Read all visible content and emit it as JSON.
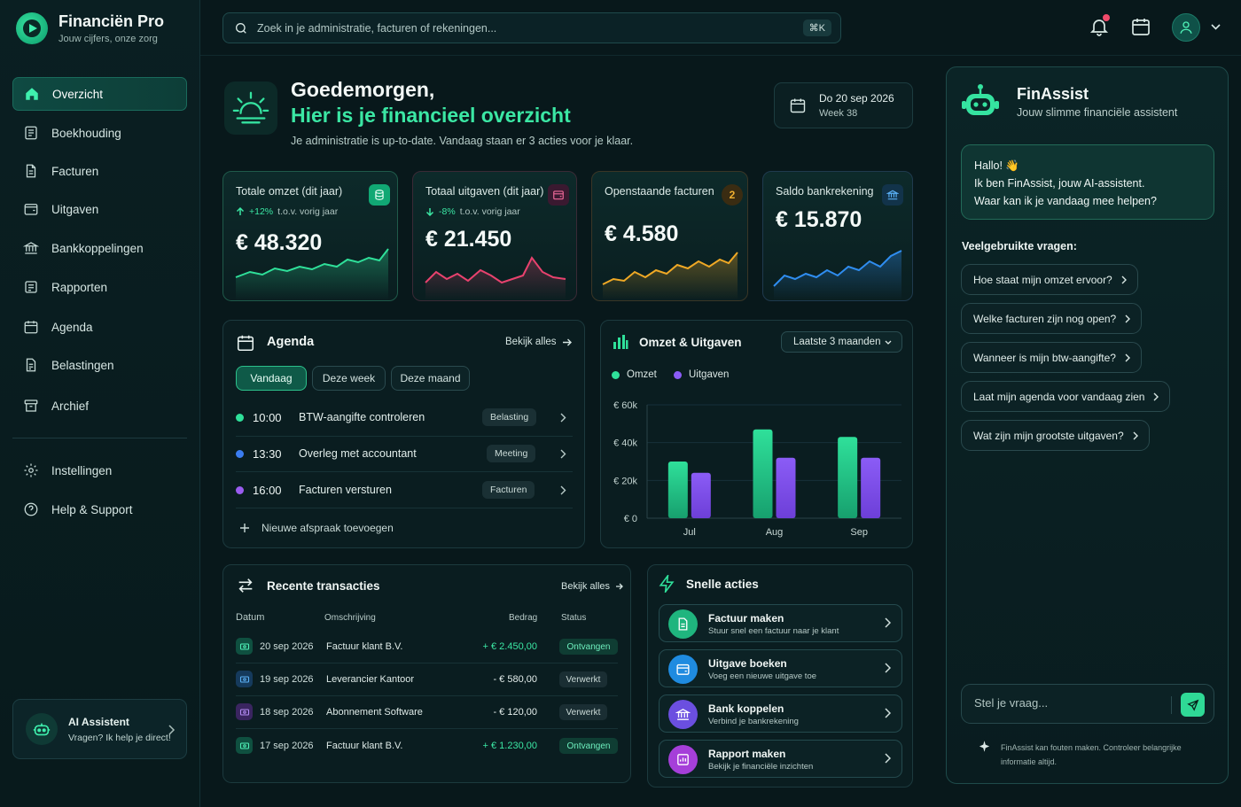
{
  "brand": {
    "name": "Financiën Pro",
    "tagline": "Jouw cijfers, onze zorg"
  },
  "nav": {
    "items": [
      {
        "label": "Overzicht",
        "icon": "home-icon",
        "active": true
      },
      {
        "label": "Boekhouding",
        "icon": "ledger-icon"
      },
      {
        "label": "Facturen",
        "icon": "invoice-icon"
      },
      {
        "label": "Uitgaven",
        "icon": "wallet-icon"
      },
      {
        "label": "Bankkoppelingen",
        "icon": "bank-icon"
      },
      {
        "label": "Rapporten",
        "icon": "report-icon"
      },
      {
        "label": "Agenda",
        "icon": "calendar-icon"
      },
      {
        "label": "Belastingen",
        "icon": "tax-document-icon"
      },
      {
        "label": "Archief",
        "icon": "archive-icon"
      }
    ],
    "bottom_items": [
      {
        "label": "Instellingen",
        "icon": "gear-icon"
      },
      {
        "label": "Help & Support",
        "icon": "help-icon"
      }
    ]
  },
  "ai_card": {
    "title": "AI Assistent",
    "subtitle": "Vragen? Ik help je direct!"
  },
  "search": {
    "placeholder": "Zoek in je administratie, facturen of rekeningen...",
    "shortcut": "⌘K"
  },
  "greeting": {
    "line1": "Goedemorgen,",
    "line2": "Hier is je financieel overzicht",
    "line3": "Je administratie is up-to-date. Vandaag staan er 3 acties voor je klaar."
  },
  "date": {
    "day": "Do 20 sep 2026",
    "week": "Week 38"
  },
  "kpis": [
    {
      "title": "Totale omzet (dit jaar)",
      "delta": "+12%",
      "delta_note": "t.o.v. vorig jaar",
      "value": "€ 48.320",
      "color": "#2fe09a"
    },
    {
      "title": "Totaal uitgaven (dit jaar)",
      "delta": "-8%",
      "delta_note": "t.o.v. vorig jaar",
      "value": "€ 21.450",
      "color": "#e8426e"
    },
    {
      "title": "Openstaande facturen",
      "badge": "2",
      "value": "€ 4.580",
      "color": "#f0a925"
    },
    {
      "title": "Saldo bankrekening",
      "value": "€ 15.870",
      "color": "#2f8df0"
    }
  ],
  "agenda": {
    "title": "Agenda",
    "view_all": "Bekijk alles",
    "tabs": [
      "Vandaag",
      "Deze week",
      "Deze maand"
    ],
    "items": [
      {
        "time": "10:00",
        "text": "BTW-aangifte controleren",
        "tag": "Belasting",
        "color": "#2fe09a"
      },
      {
        "time": "13:30",
        "text": "Overleg met accountant",
        "tag": "Meeting",
        "color": "#3b7df0"
      },
      {
        "time": "16:00",
        "text": "Facturen versturen",
        "tag": "Facturen",
        "color": "#9a5cf0"
      }
    ],
    "add_label": "Nieuwe afspraak toevoegen"
  },
  "chart_panel": {
    "title": "Omzet & Uitgaven",
    "period": "Laatste 3 maanden"
  },
  "chart_data": {
    "type": "bar",
    "categories": [
      "Jul",
      "Aug",
      "Sep"
    ],
    "series": [
      {
        "name": "Omzet",
        "values": [
          30000,
          47000,
          43000
        ],
        "color": "#2fe09a"
      },
      {
        "name": "Uitgaven",
        "values": [
          24000,
          32000,
          32000
        ],
        "color": "#8b5cf6"
      }
    ],
    "yticks": [
      "€ 0",
      "€ 20k",
      "€ 40k",
      "€ 60k"
    ],
    "ylim": [
      0,
      60000
    ],
    "grid": true,
    "legend": "top-left"
  },
  "transactions": {
    "title": "Recente transacties",
    "view_all": "Bekijk alles",
    "headers": [
      "Datum",
      "Omschrijving",
      "Bedrag",
      "Status"
    ],
    "rows": [
      {
        "date": "20 sep 2026",
        "desc": "Factuur klant B.V.",
        "amount": "+ € 2.450,00",
        "status": "Ontvangen",
        "icon": "cash-icon"
      },
      {
        "date": "19 sep 2026",
        "desc": "Leverancier Kantoor",
        "amount": "- € 580,00",
        "status": "Verwerkt",
        "icon": "link-icon"
      },
      {
        "date": "18 sep 2026",
        "desc": "Abonnement Software",
        "amount": "- € 120,00",
        "status": "Verwerkt",
        "icon": "software-icon"
      },
      {
        "date": "17 sep 2026",
        "desc": "Factuur klant B.V.",
        "amount": "+ € 1.230,00",
        "status": "Ontvangen",
        "icon": "cash-icon"
      }
    ]
  },
  "quick_actions": {
    "title": "Snelle acties",
    "items": [
      {
        "title": "Factuur maken",
        "subtitle": "Stuur snel een factuur naar je klant",
        "color": "#1fb57e",
        "icon": "invoice-icon"
      },
      {
        "title": "Uitgave boeken",
        "subtitle": "Voeg een nieuwe uitgave toe",
        "color": "#1f8be0",
        "icon": "wallet-icon"
      },
      {
        "title": "Bank koppelen",
        "subtitle": "Verbind je bankrekening",
        "color": "#6b4fe0",
        "icon": "bank-icon"
      },
      {
        "title": "Rapport maken",
        "subtitle": "Bekijk je financiële inzichten",
        "color": "#a53fd9",
        "icon": "report-icon"
      }
    ]
  },
  "assistant": {
    "title": "FinAssist",
    "subtitle": "Jouw slimme financiële assistent",
    "greeting_line1": "Hallo! 👋",
    "greeting_line2": "Ik ben FinAssist, jouw AI-assistent.",
    "greeting_line3": "Waar kan ik je vandaag mee helpen?",
    "faq_title": "Veelgebruikte vragen:",
    "questions": [
      "Hoe staat mijn omzet ervoor?",
      "Welke facturen zijn nog open?",
      "Wanneer is mijn btw-aangifte?",
      "Laat mijn agenda voor vandaag zien",
      "Wat zijn mijn grootste uitgaven?"
    ],
    "input_placeholder": "Stel je vraag...",
    "disclaimer": "FinAssist kan fouten maken. Controleer belangrijke informatie altijd."
  }
}
